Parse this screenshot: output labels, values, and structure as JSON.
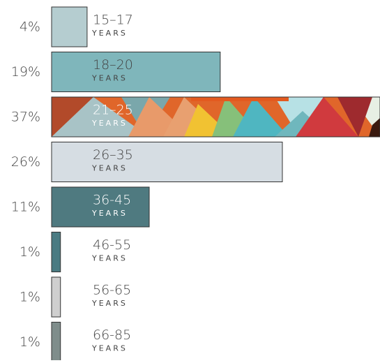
{
  "chart_data": {
    "type": "bar",
    "orientation": "horizontal",
    "categories": [
      "15–17",
      "18–20",
      "21–25",
      "26–35",
      "36-45",
      "46-55",
      "56-65",
      "66-85"
    ],
    "category_sublabel": "YEARS",
    "values": [
      4,
      19,
      37,
      26,
      11,
      1,
      1,
      1
    ],
    "value_labels": [
      "4%",
      "19%",
      "37%",
      "26%",
      "11%",
      "1%",
      "1%",
      "1%"
    ],
    "colors": [
      "#b5cdd0",
      "#7fb6bb",
      "#e0662a",
      "#d6dde3",
      "#4f7a80",
      "#4a7b82",
      "#cfcfcf",
      "#7f8d8b"
    ],
    "patterns": [
      null,
      null,
      "triangles",
      null,
      null,
      null,
      null,
      null
    ],
    "xlim": [
      0,
      37
    ]
  }
}
